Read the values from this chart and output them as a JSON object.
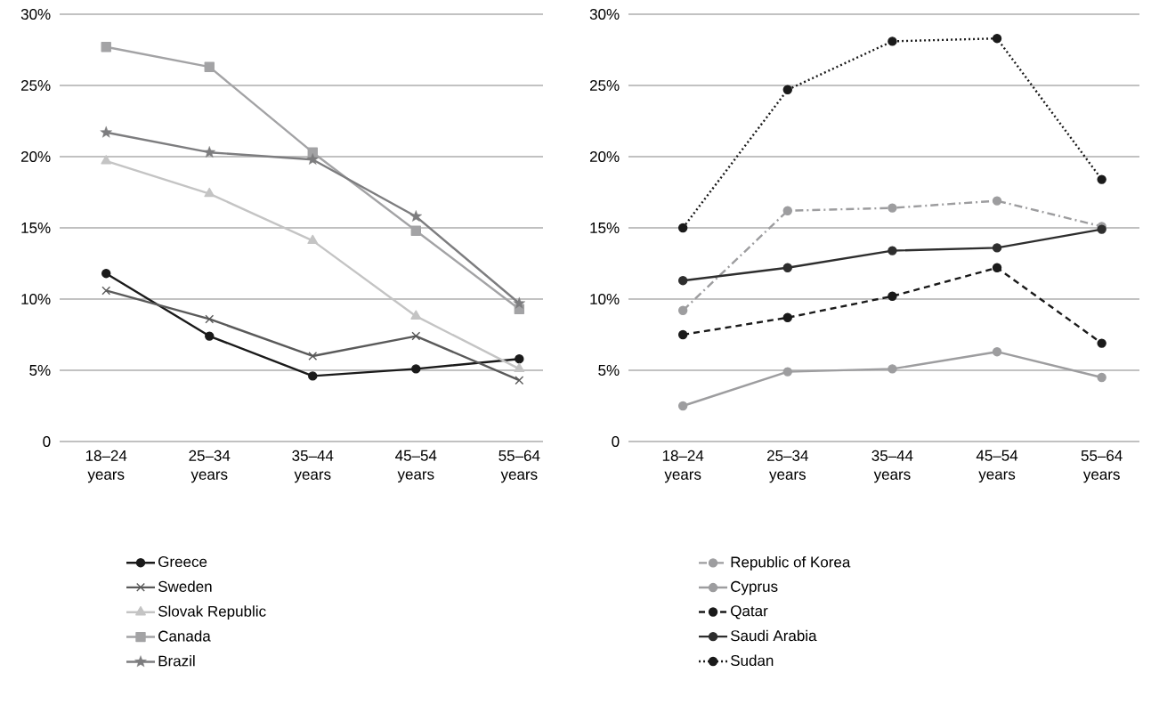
{
  "chart_data": [
    {
      "type": "line",
      "categories": [
        "18–24 years",
        "25–34 years",
        "35–44 years",
        "45–54 years",
        "55–64 years"
      ],
      "series": [
        {
          "name": "Greece",
          "color": "#1a1a1a",
          "marker": "circle",
          "line_style": "solid",
          "values": [
            11.8,
            7.4,
            4.6,
            5.1,
            5.8
          ]
        },
        {
          "name": "Sweden",
          "color": "#5a5a5a",
          "marker": "cross",
          "line_style": "solid",
          "values": [
            10.6,
            8.6,
            6.0,
            7.4,
            4.3
          ]
        },
        {
          "name": "Slovak Republic",
          "color": "#c4c4c4",
          "marker": "triangle",
          "line_style": "solid",
          "values": [
            19.7,
            17.4,
            14.1,
            8.8,
            5.1
          ]
        },
        {
          "name": "Canada",
          "color": "#a3a3a5",
          "marker": "square",
          "line_style": "solid",
          "values": [
            27.7,
            26.3,
            20.3,
            14.8,
            9.3
          ]
        },
        {
          "name": "Brazil",
          "color": "#7d7d7f",
          "marker": "star",
          "line_style": "solid",
          "values": [
            21.7,
            20.3,
            19.8,
            15.8,
            9.7
          ]
        }
      ],
      "ylim": [
        0,
        30
      ],
      "yticks": [
        0,
        {
          "value": 5,
          "label": "5%"
        },
        {
          "value": 10,
          "label": "10%"
        },
        {
          "value": 15,
          "label": "15%"
        },
        {
          "value": 20,
          "label": "20%"
        },
        {
          "value": 25,
          "label": "25%"
        },
        {
          "value": 30,
          "label": "30%"
        }
      ],
      "grid": "y",
      "legend": "bottom"
    },
    {
      "type": "line",
      "categories": [
        "18–24 years",
        "25–34 years",
        "35–44 years",
        "45–54 years",
        "55–64 years"
      ],
      "series": [
        {
          "name": "Republic of Korea",
          "color": "#9d9d9f",
          "marker": "circle",
          "line_style": "dashdot",
          "values": [
            9.2,
            16.2,
            16.4,
            16.9,
            15.1
          ]
        },
        {
          "name": "Cyprus",
          "color": "#9d9d9f",
          "marker": "circle",
          "line_style": "solid",
          "values": [
            2.5,
            4.9,
            5.1,
            6.3,
            4.5
          ]
        },
        {
          "name": "Qatar",
          "color": "#1a1a1a",
          "marker": "circle",
          "line_style": "dashed",
          "values": [
            7.5,
            8.7,
            10.2,
            12.2,
            6.9
          ]
        },
        {
          "name": "Saudi Arabia",
          "color": "#2e2e2e",
          "marker": "circle",
          "line_style": "solid",
          "values": [
            11.3,
            12.2,
            13.4,
            13.6,
            14.9
          ]
        },
        {
          "name": "Sudan",
          "color": "#1a1a1a",
          "marker": "circle",
          "line_style": "dotted",
          "values": [
            15.0,
            24.7,
            28.1,
            28.3,
            18.4
          ]
        }
      ],
      "ylim": [
        0,
        30
      ],
      "yticks": [
        0,
        {
          "value": 5,
          "label": "5%"
        },
        {
          "value": 10,
          "label": "10%"
        },
        {
          "value": 15,
          "label": "15%"
        },
        {
          "value": 20,
          "label": "20%"
        },
        {
          "value": 25,
          "label": "25%"
        },
        {
          "value": 30,
          "label": "30%"
        }
      ],
      "grid": "y",
      "legend": "bottom"
    }
  ]
}
